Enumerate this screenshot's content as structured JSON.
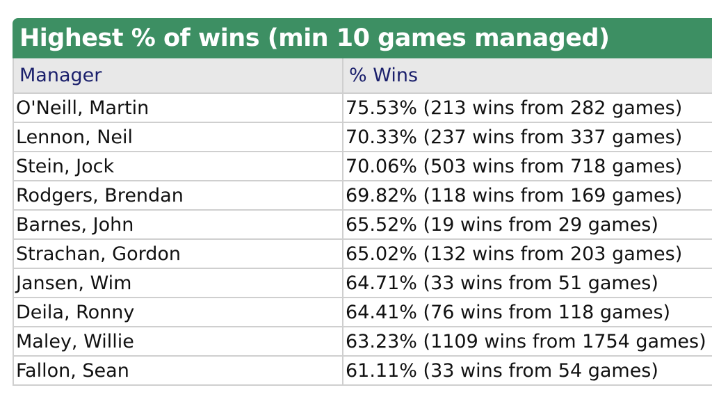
{
  "table": {
    "title": "Highest % of wins (min 10 games managed)",
    "headers": [
      "Manager",
      "% Wins"
    ],
    "rows": [
      {
        "manager": "O'Neill, Martin",
        "wins": "75.53% (213 wins from 282 games)"
      },
      {
        "manager": "Lennon, Neil",
        "wins": "70.33% (237 wins from 337 games)"
      },
      {
        "manager": "Stein, Jock",
        "wins": "70.06% (503 wins from 718 games)"
      },
      {
        "manager": "Rodgers, Brendan",
        "wins": "69.82% (118 wins from 169 games)"
      },
      {
        "manager": "Barnes, John",
        "wins": "65.52% (19 wins from 29 games)"
      },
      {
        "manager": "Strachan, Gordon",
        "wins": "65.02% (132 wins from 203 games)"
      },
      {
        "manager": "Jansen, Wim",
        "wins": "64.71% (33 wins from 51 games)"
      },
      {
        "manager": "Deila, Ronny",
        "wins": "64.41% (76 wins from 118 games)"
      },
      {
        "manager": "Maley, Willie",
        "wins": "63.23% (1109 wins from 1754 games)"
      },
      {
        "manager": "Fallon, Sean",
        "wins": "61.11% (33 wins from 54 games)"
      }
    ]
  },
  "colors": {
    "title_background": "#3d8f63",
    "header_background": "#e8e8e8",
    "header_text": "#1a1f6b"
  }
}
